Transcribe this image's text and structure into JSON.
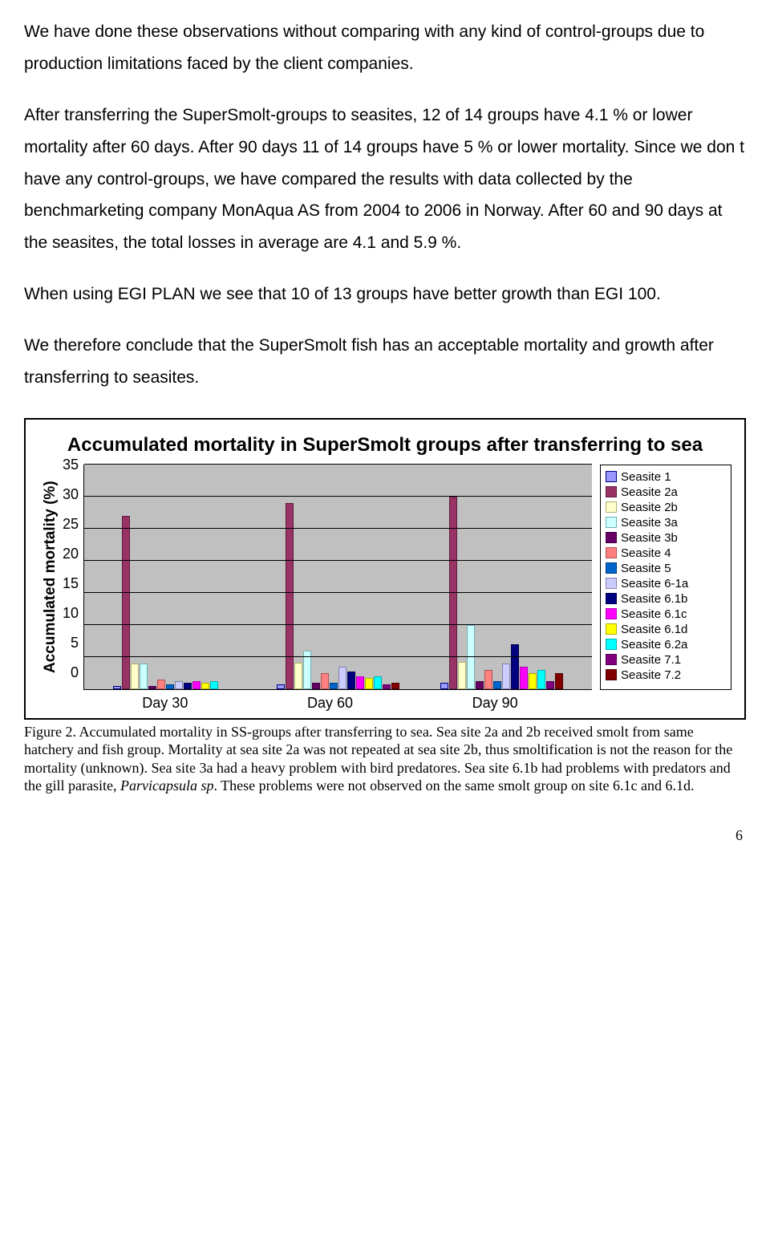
{
  "paragraphs": {
    "p1": "We have done these observations without comparing with any kind of control-groups due to production limitations faced by the client companies.",
    "p2": "After transferring the SuperSmolt-groups to seasites, 12 of 14 groups have 4.1 % or lower mortality after 60 days. After 90 days 11 of 14 groups have 5 % or lower mortality. Since we don t have any control-groups, we have compared the results with data collected by the benchmarketing company MonAqua AS from 2004 to 2006 in Norway. After 60 and 90 days at the seasites, the total losses in average are 4.1 and 5.9 %.",
    "p3": "When using EGI PLAN we see that 10 of 13 groups have better growth than EGI 100.",
    "p4": "We therefore conclude that the SuperSmolt fish has an acceptable mortality and growth after transferring to seasites."
  },
  "chart": {
    "type": "grouped-bar",
    "title": "Accumulated mortality in SuperSmolt groups after transferring to sea",
    "ylabel": "Accumulated mortality (%)",
    "ylim_max": 35,
    "ytick_step": 5,
    "yticks": [
      "35",
      "30",
      "25",
      "20",
      "15",
      "10",
      "5",
      "0"
    ],
    "categories": [
      "Day 30",
      "Day 60",
      "Day 90"
    ],
    "plot_background": "#c0c0c0",
    "grid_color": "#000000",
    "series": [
      {
        "label": "Seasite 1",
        "color": "#9999ff",
        "border": "#000080"
      },
      {
        "label": "Seasite  2a",
        "color": "#993366",
        "border": "#5a1d3d"
      },
      {
        "label": "Seasite  2b",
        "color": "#ffffcc",
        "border": "#b0b070"
      },
      {
        "label": "Seasite  3a",
        "color": "#ccffff",
        "border": "#70b0b0"
      },
      {
        "label": "Seasite  3b",
        "color": "#660066",
        "border": "#3f003f"
      },
      {
        "label": "Seasite 4",
        "color": "#ff8080",
        "border": "#b05050"
      },
      {
        "label": "Seasite  5",
        "color": "#0066cc",
        "border": "#003a80"
      },
      {
        "label": "Seasite  6-1a",
        "color": "#ccccff",
        "border": "#8080b0"
      },
      {
        "label": "Seasite  6.1b",
        "color": "#000080",
        "border": "#000050"
      },
      {
        "label": "Seasite  6.1c",
        "color": "#ff00ff",
        "border": "#b000b0"
      },
      {
        "label": "Seasite  6.1d",
        "color": "#ffff00",
        "border": "#b0b000"
      },
      {
        "label": "Seasite  6.2a",
        "color": "#00ffff",
        "border": "#00b0b0"
      },
      {
        "label": "Seasite  7.1",
        "color": "#800080",
        "border": "#500050"
      },
      {
        "label": "Seasite  7.2",
        "color": "#800000",
        "border": "#500000"
      }
    ],
    "data": {
      "Day 30": [
        0.5,
        27,
        4,
        4,
        0.5,
        1.5,
        0.7,
        1.2,
        1,
        1.2,
        1,
        1.2,
        0,
        0
      ],
      "Day 60": [
        0.8,
        29,
        4.1,
        6,
        1,
        2.5,
        1,
        3.5,
        2.8,
        2,
        1.8,
        2,
        0.8,
        1
      ],
      "Day 90": [
        1,
        30,
        4.2,
        10,
        1.2,
        3,
        1.2,
        4,
        7,
        3.5,
        2.5,
        3,
        1.2,
        2.5
      ]
    }
  },
  "caption": {
    "prefix": "Figure 2. Accumulated mortality in SS-groups after transferring to sea. Sea site 2a and 2b received smolt from same hatchery and fish group. Mortality at sea site 2a was not repeated at sea site 2b, thus smoltification is not the reason for the mortality (unknown). Sea site 3a had a heavy problem with bird predatores.  Sea site 6.1b had problems with predators and the gill parasite, ",
    "italic": "Parvicapsula sp",
    "suffix": ". These problems were not observed on the same smolt group on site 6.1c and 6.1d."
  },
  "page_number": "6"
}
